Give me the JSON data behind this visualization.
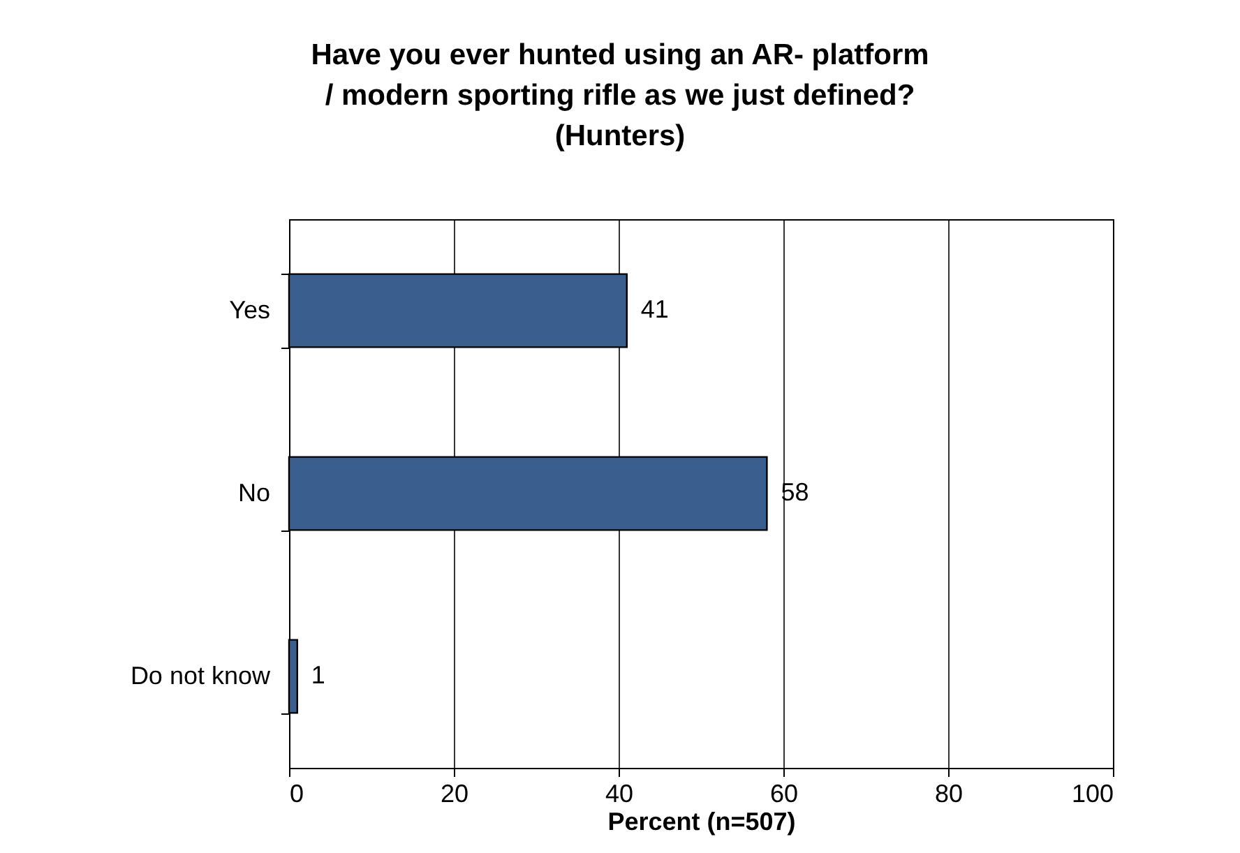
{
  "chart_data": {
    "type": "bar",
    "orientation": "horizontal",
    "title": "Have you ever hunted using an AR- platform / modern sporting rifle as we just defined? (Hunters)",
    "xlabel": "Percent (n=507)",
    "categories": [
      "Yes",
      "No",
      "Do not know"
    ],
    "values": [
      41,
      58,
      1
    ],
    "color": "#3a5f8f",
    "xlim": [
      0,
      100
    ],
    "xticks": [
      0,
      20,
      40,
      60,
      80,
      100
    ],
    "grid": "x",
    "data_labels": true
  }
}
